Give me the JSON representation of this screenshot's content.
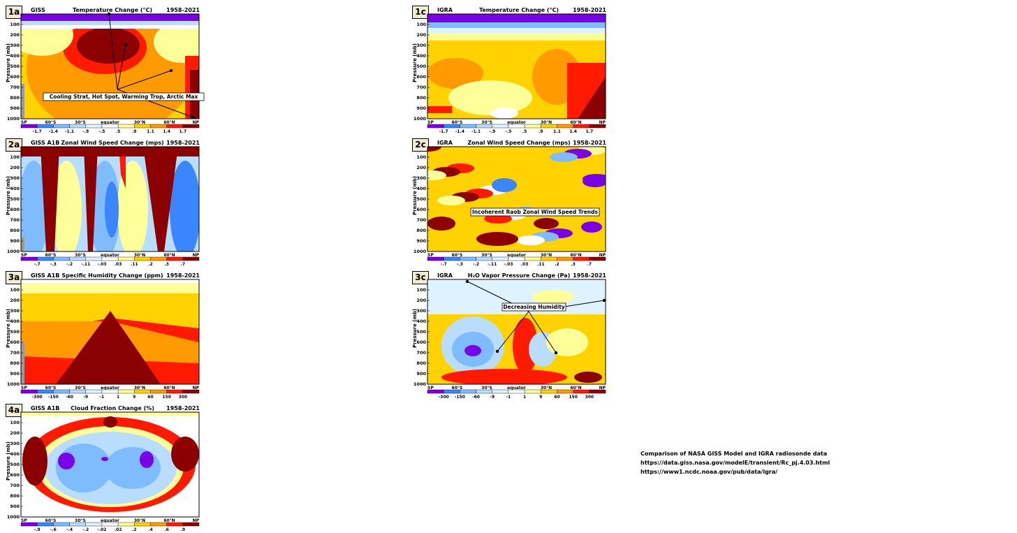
{
  "panels": [
    {
      "id": "1a",
      "source": "GISS",
      "title": "Temperature Change (°C)",
      "range": "1958-2021",
      "ylabel": "Pressure (mb)",
      "colorbar": [
        "-1.7",
        "-1.4",
        "-1.1",
        "-.9",
        "-.5",
        ".5",
        ".9",
        "1.1",
        "1.4",
        "1.7"
      ],
      "annotation": "Cooling Strat, Hot Spot, Warming Trop, Arctic Max"
    },
    {
      "id": "1c",
      "source": "IGRA",
      "title": "Temperature Change (°C)",
      "range": "1958-2021",
      "ylabel": "Pressure (mb)",
      "colorbar": [
        "-1.7",
        "-1.4",
        "-1.1",
        "-.9",
        "-.5",
        ".5",
        ".9",
        "1.1",
        "1.4",
        "1.7"
      ],
      "annotation": ""
    },
    {
      "id": "2a",
      "source": "GISS A1B",
      "title": "Zonal Wind Speed Change (mps)",
      "range": "1958-2021",
      "ylabel": "Pressure (mb)",
      "colorbar": [
        "-.7",
        "-.3",
        "-.2",
        "-.11",
        "-.03",
        ".03",
        ".11",
        ".2",
        ".3",
        ".7"
      ],
      "annotation": ""
    },
    {
      "id": "2c",
      "source": "IGRA",
      "title": "Zonal Wind Speed Change (mps)",
      "range": "1958-2021",
      "ylabel": "Pressure (mb)",
      "colorbar": [
        "-.7",
        "-.3",
        "-.2",
        "-.11",
        "-.03",
        ".03",
        ".11",
        ".2",
        ".3",
        ".7"
      ],
      "annotation": "Incoherent Raob Zonal Wind Speed Trends"
    },
    {
      "id": "3a",
      "source": "GISS A1B",
      "title": "Specific Humidity Change (ppm)",
      "range": "1958-2021",
      "ylabel": "Pressure (mb)",
      "colorbar": [
        "-300",
        "-150",
        "-60",
        "-9",
        "-1",
        "1",
        "9",
        "60",
        "150",
        "300"
      ],
      "annotation": ""
    },
    {
      "id": "3c",
      "source": "IGRA",
      "title": "H₂O Vapor Pressure Change (Pa)",
      "range": "1958-2021",
      "ylabel": "Pressure (mb)",
      "colorbar": [
        "-300",
        "-150",
        "-60",
        "-9",
        "-1",
        "1",
        "9",
        "60",
        "150",
        "300"
      ],
      "annotation": "Decreasing Humidity"
    },
    {
      "id": "4a",
      "source": "GISS A1B",
      "title": "Cloud Fraction Change (%)",
      "range": "1958-2021",
      "ylabel": "Pressure (mb)",
      "colorbar": [
        "-.9",
        "-.6",
        "-.4",
        "-.2",
        "-.02",
        ".02",
        ".2",
        ".4",
        ".6",
        ".9"
      ],
      "annotation": ""
    }
  ],
  "chart_data": {
    "type": "heatmap",
    "x_ticks": [
      "SP",
      "60°S",
      "30°S",
      "equator",
      "30°N",
      "60°N",
      "NP"
    ],
    "y_ticks": [
      "100",
      "200",
      "300",
      "400",
      "500",
      "600",
      "700",
      "800",
      "900",
      "1000"
    ],
    "colors": [
      "#7a00e6",
      "#3b86ff",
      "#7fbcff",
      "#b9ddff",
      "#dff2ff",
      "#ffffff",
      "#ffff9a",
      "#ffd200",
      "#ff9a00",
      "#ff1a00",
      "#8b0000"
    ]
  },
  "credits": [
    "Comparison of NASA GISS Model and IGRA radiosonde data",
    "https://data.giss.nasa.gov/modelE/transient/Rc_pj.4.03.html",
    "https://www1.ncdc.noaa.gov/pub/data/igra/"
  ]
}
